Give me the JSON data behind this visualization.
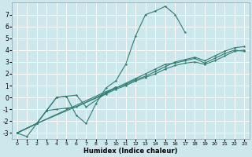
{
  "xlabel": "Humidex (Indice chaleur)",
  "bg_color": "#cce8ec",
  "grid_color": "#ffffff",
  "line_color": "#2e7d72",
  "xlim": [
    -0.5,
    23.5
  ],
  "ylim": [
    -3.5,
    8.0
  ],
  "xticks": [
    0,
    1,
    2,
    3,
    4,
    5,
    6,
    7,
    8,
    9,
    10,
    11,
    12,
    13,
    14,
    15,
    16,
    17,
    18,
    19,
    20,
    21,
    22,
    23
  ],
  "yticks": [
    -3,
    -2,
    -1,
    0,
    1,
    2,
    3,
    4,
    5,
    6,
    7
  ],
  "line0_x": [
    0,
    1,
    2,
    3,
    4,
    5,
    6,
    7,
    8,
    9,
    10,
    11,
    12,
    13,
    14,
    15,
    16,
    17
  ],
  "line0_y": [
    -3.0,
    -3.3,
    -2.2,
    -1.1,
    0.0,
    0.1,
    -1.5,
    -2.2,
    -0.5,
    0.8,
    1.4,
    2.8,
    5.2,
    7.0,
    7.3,
    7.7,
    7.0,
    5.5
  ],
  "line1_x": [
    0,
    2,
    3,
    4,
    5,
    6,
    7,
    10
  ],
  "line1_y": [
    -3.0,
    -2.2,
    -1.1,
    0.0,
    0.1,
    0.2,
    -0.8,
    0.9
  ],
  "line2_x": [
    0,
    2,
    3,
    4,
    5,
    6,
    9,
    10,
    11,
    12,
    13,
    14,
    15,
    16,
    17,
    18,
    19,
    20,
    21,
    22,
    23
  ],
  "line2_y": [
    -3.0,
    -2.2,
    -1.1,
    -1.0,
    -0.9,
    -0.8,
    0.4,
    0.8,
    1.2,
    1.6,
    2.0,
    2.4,
    2.8,
    2.9,
    3.1,
    3.3,
    2.9,
    3.3,
    3.7,
    4.0,
    3.9
  ],
  "line3_x": [
    0,
    2,
    9,
    10,
    11,
    12,
    13,
    14,
    15,
    16,
    17,
    18,
    19,
    20,
    21,
    22,
    23
  ],
  "line3_y": [
    -3.0,
    -2.2,
    0.3,
    0.7,
    1.0,
    1.4,
    1.7,
    2.0,
    2.4,
    2.7,
    2.9,
    3.0,
    2.8,
    3.1,
    3.5,
    3.9,
    4.0
  ],
  "line4_x": [
    0,
    2,
    9,
    10,
    11,
    12,
    13,
    14,
    15,
    16,
    17,
    18,
    19,
    20,
    21,
    22,
    23
  ],
  "line4_y": [
    -3.0,
    -2.2,
    0.5,
    0.8,
    1.1,
    1.5,
    1.8,
    2.2,
    2.6,
    3.0,
    3.2,
    3.4,
    3.1,
    3.5,
    3.9,
    4.2,
    4.3
  ]
}
